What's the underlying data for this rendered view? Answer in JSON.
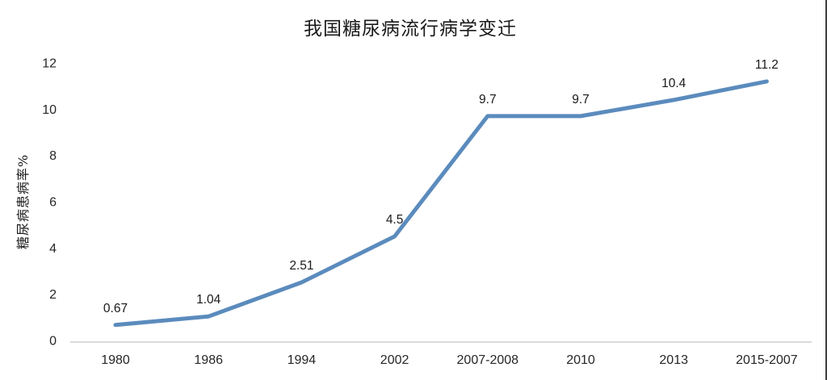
{
  "chart_data": {
    "type": "line",
    "title": "我国糖尿病流行病学变迁",
    "xlabel": "",
    "ylabel": "糖尿病患病率%",
    "categories": [
      "1980",
      "1986",
      "1994",
      "2002",
      "2007-2008",
      "2010",
      "2013",
      "2015-2007"
    ],
    "values": [
      0.67,
      1.04,
      2.51,
      4.5,
      9.7,
      9.7,
      10.4,
      11.2
    ],
    "point_labels": [
      "0.67",
      "1.04",
      "2.51",
      "4.5",
      "9.7",
      "9.7",
      "10.4",
      "11.2"
    ],
    "ylim": [
      0,
      12
    ],
    "yticks": [
      0,
      2,
      4,
      6,
      8,
      10,
      12
    ],
    "grid": false,
    "legend": false,
    "line_color": "#5b8bbd",
    "axis_line_color": "#d9d9d9",
    "text_color": "#262626"
  }
}
